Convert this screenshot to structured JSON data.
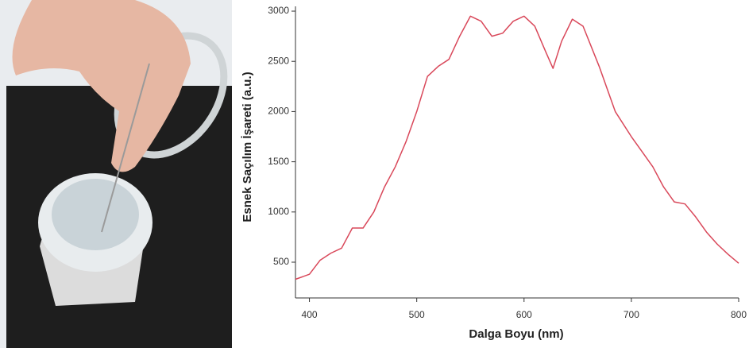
{
  "chart_data": {
    "type": "line",
    "x_label": "Dalga Boyu (nm)",
    "y_label": "Esnek Saçılım İşareti (a.u.)",
    "x": [
      387,
      400,
      410,
      420,
      430,
      440,
      450,
      460,
      470,
      480,
      490,
      500,
      510,
      520,
      530,
      540,
      550,
      560,
      570,
      580,
      590,
      600,
      610,
      620,
      627,
      635,
      645,
      655,
      670,
      685,
      700,
      710,
      720,
      730,
      740,
      750,
      760,
      770,
      780,
      790,
      800
    ],
    "values": [
      330,
      380,
      520,
      590,
      640,
      840,
      840,
      1000,
      1250,
      1450,
      1700,
      2000,
      2350,
      2450,
      2520,
      2750,
      2950,
      2900,
      2750,
      2780,
      2900,
      2950,
      2850,
      2600,
      2430,
      2700,
      2920,
      2850,
      2450,
      2000,
      1750,
      1600,
      1450,
      1250,
      1100,
      1080,
      950,
      800,
      680,
      580,
      490
    ],
    "color": "#d9485a",
    "xlim": [
      387,
      800
    ],
    "ylim": [
      144,
      3016
    ],
    "xticks": [
      400,
      500,
      600,
      700,
      800
    ],
    "yticks": [
      500,
      1000,
      1500,
      2000,
      2500,
      3000
    ],
    "grid": false
  }
}
